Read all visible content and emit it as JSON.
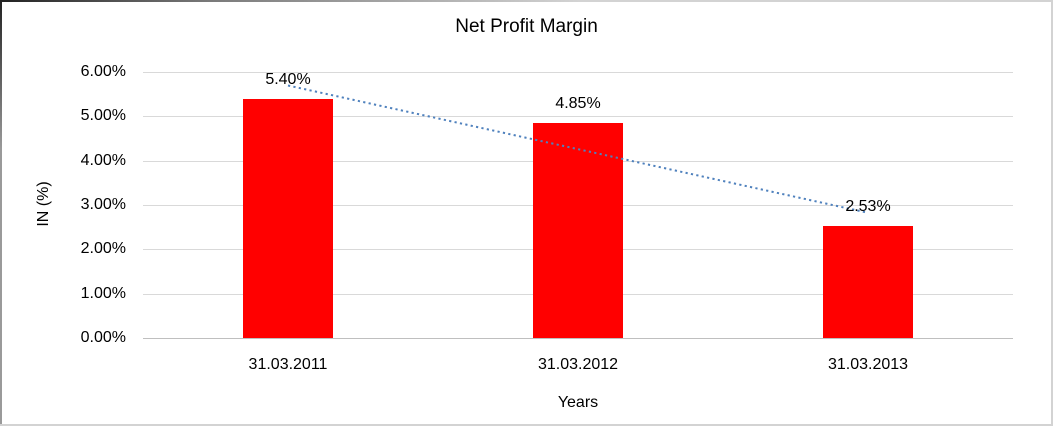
{
  "chart_data": {
    "type": "bar",
    "title": "Net Profit Margin",
    "xlabel": "Years",
    "ylabel": "IN (%)",
    "categories": [
      "31.03.2011",
      "31.03.2012",
      "31.03.2013"
    ],
    "values": [
      5.4,
      4.85,
      2.53
    ],
    "data_labels": [
      "5.40%",
      "4.85%",
      "2.53%"
    ],
    "ylim": [
      0,
      6
    ],
    "ytick_labels": [
      "0.00%",
      "1.00%",
      "2.00%",
      "3.00%",
      "4.00%",
      "5.00%",
      "6.00%"
    ],
    "grid": true,
    "legend": "none",
    "bar_color": "#ff0000",
    "trendline": {
      "type": "linear",
      "style": "dotted",
      "color": "#4f81bd"
    },
    "gridline_color": "#d9d9d9",
    "axis_line_color": "#bfbfbf",
    "text_color": "#000000",
    "background_color": "#ffffff"
  }
}
